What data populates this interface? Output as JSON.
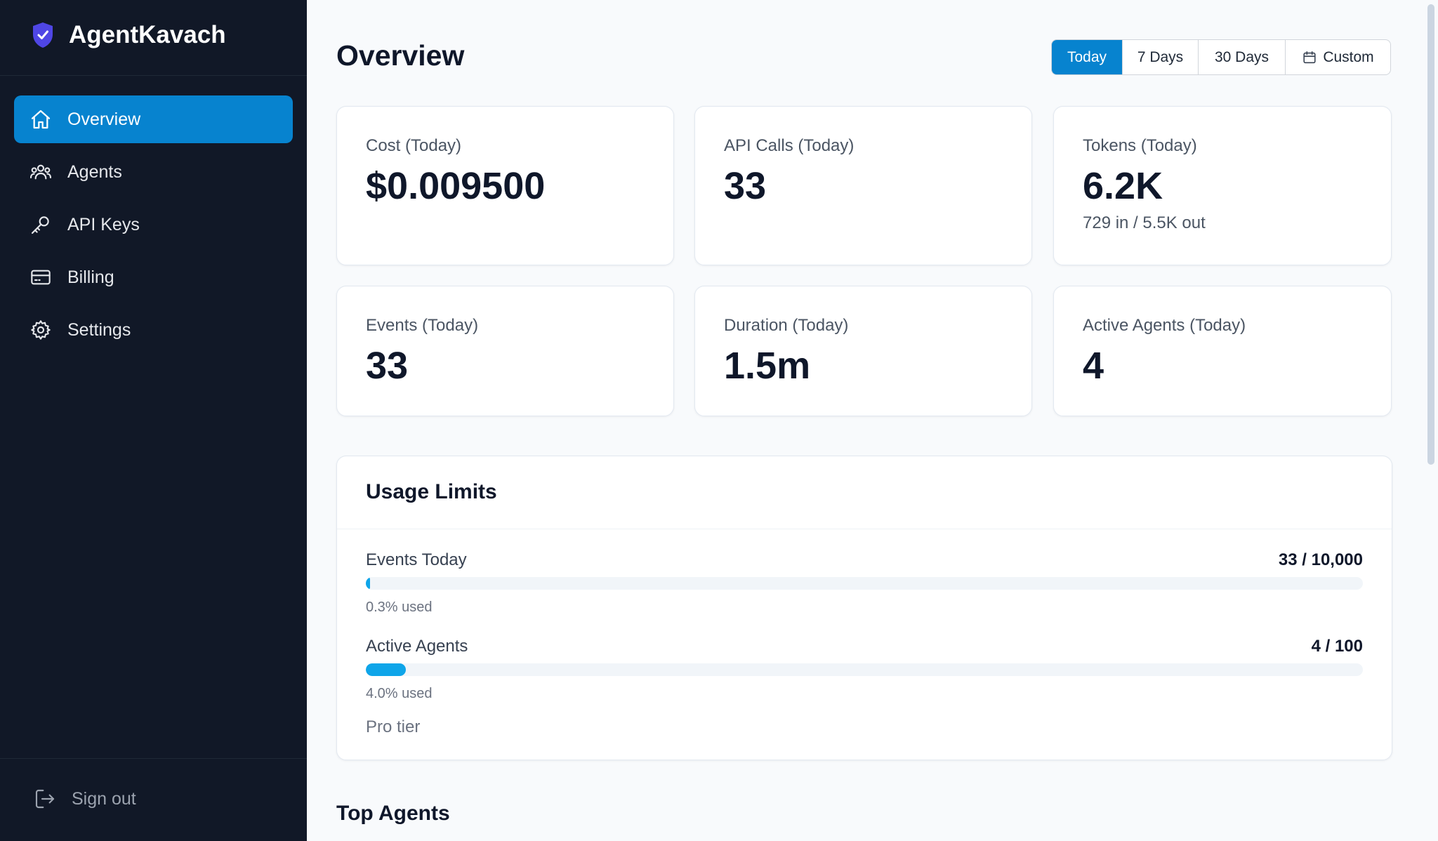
{
  "brand": {
    "name": "AgentKavach",
    "icon": "shield-check-icon",
    "accent": "#4f46e5"
  },
  "sidebar": {
    "items": [
      {
        "label": "Overview",
        "icon": "home-icon",
        "active": true
      },
      {
        "label": "Agents",
        "icon": "users-icon",
        "active": false
      },
      {
        "label": "API Keys",
        "icon": "key-icon",
        "active": false
      },
      {
        "label": "Billing",
        "icon": "credit-card-icon",
        "active": false
      },
      {
        "label": "Settings",
        "icon": "gear-icon",
        "active": false
      }
    ],
    "sign_out": "Sign out"
  },
  "main": {
    "title": "Overview",
    "ranges": [
      {
        "label": "Today",
        "active": true
      },
      {
        "label": "7 Days",
        "active": false
      },
      {
        "label": "30 Days",
        "active": false
      },
      {
        "label": "Custom",
        "active": false,
        "icon": "calendar-icon"
      }
    ],
    "stats": [
      {
        "label": "Cost (Today)",
        "value": "$0.009500",
        "sub": ""
      },
      {
        "label": "API Calls (Today)",
        "value": "33",
        "sub": ""
      },
      {
        "label": "Tokens (Today)",
        "value": "6.2K",
        "sub": "729 in / 5.5K out"
      },
      {
        "label": "Events (Today)",
        "value": "33",
        "sub": ""
      },
      {
        "label": "Duration (Today)",
        "value": "1.5m",
        "sub": ""
      },
      {
        "label": "Active Agents (Today)",
        "value": "4",
        "sub": ""
      }
    ],
    "usage": {
      "title": "Usage Limits",
      "limits": [
        {
          "label": "Events Today",
          "count": "33 / 10,000",
          "percent": 0.3,
          "used": "0.3% used"
        },
        {
          "label": "Active Agents",
          "count": "4 / 100",
          "percent": 4.0,
          "used": "4.0% used"
        }
      ],
      "tier": "Pro tier"
    },
    "top_agents_title": "Top Agents"
  },
  "colors": {
    "sidebar_bg": "#111827",
    "primary": "#0783cf",
    "bar_fill": "#0ea5e9"
  }
}
